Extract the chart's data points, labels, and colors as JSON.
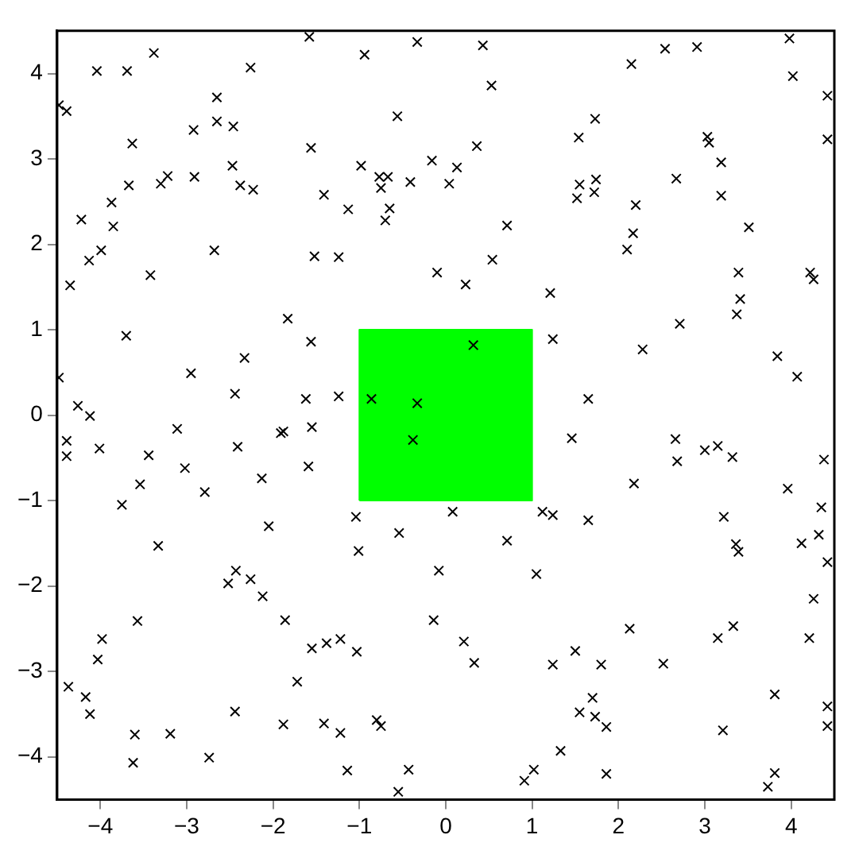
{
  "chart_data": {
    "type": "scatter",
    "grid": false,
    "legend": false,
    "xlim": [
      -4.5,
      4.5
    ],
    "xticks": [
      -4,
      -3,
      -2,
      -1,
      0,
      1,
      2,
      3,
      4
    ],
    "ylim": [
      -4.5,
      4.5
    ],
    "yticks": [
      -4,
      -3,
      -2,
      -1,
      0,
      1,
      2,
      3,
      4
    ],
    "series": [
      {
        "type": "area",
        "color": "#00ff00",
        "x": [
          -1,
          -1,
          1,
          1,
          -1
        ],
        "values": [
          -1,
          1,
          1,
          -1,
          -1
        ]
      },
      {
        "marker": "cross",
        "color": "#000000",
        "x": [
          -4.48,
          -4.48,
          -4.39,
          -4.04,
          -3.69,
          -3.38,
          -3.63,
          -3.67,
          -3.87,
          -3.85,
          -4.22,
          -4.13,
          -3.99,
          -4.35,
          -3.7,
          -3.42,
          -3.3,
          -3.22,
          -2.92,
          -2.91,
          -2.65,
          -2.65,
          -2.46,
          -2.47,
          -2.38,
          -2.23,
          -2.26,
          -2.68,
          -2.95,
          -2.33,
          -2.44,
          -1.83,
          -1.56,
          -1.62,
          -1.24,
          -1.58,
          -1.56,
          -1.52,
          -1.24,
          -1.41,
          -1.13,
          -0.98,
          -0.94,
          -0.56,
          -0.77,
          -0.67,
          -0.75,
          -0.65,
          -0.7,
          -0.41,
          -0.33,
          -0.86,
          -0.33,
          -4.26,
          -4.12,
          0.43,
          0.53,
          0.36,
          -0.16,
          0.13,
          0.04,
          0.71,
          0.54,
          -0.1,
          0.23,
          1.21,
          0.32,
          1.24,
          1.65,
          2.28,
          2.71,
          2.15,
          2.54,
          2.91,
          3.98,
          4.02,
          4.42,
          1.73,
          1.54,
          3.03,
          3.05,
          4.42,
          3.19,
          2.67,
          1.74,
          1.55,
          1.72,
          1.52,
          2.2,
          3.19,
          2.17,
          2.1,
          3.51,
          3.39,
          3.41,
          3.37,
          4.22,
          4.26,
          3.84,
          4.07,
          1.46,
          2.66,
          2.68,
          3.0,
          3.15,
          3.32,
          4.38,
          2.18,
          3.96,
          4.35,
          4.32,
          4.12,
          0.08,
          1.12,
          1.24,
          1.65,
          3.22,
          0.71,
          3.36,
          3.39,
          4.42,
          -0.08,
          1.05,
          4.26,
          -0.14,
          2.13,
          3.33,
          3.15,
          4.21,
          0.21,
          0.33,
          1.5,
          1.24,
          1.8,
          2.52,
          3.81,
          1.7,
          1.55,
          1.73,
          1.86,
          3.21,
          4.42,
          4.42,
          1.33,
          1.02,
          0.91,
          1.86,
          3.81,
          3.73,
          -4.39,
          -4.39,
          -4.01,
          -3.11,
          -3.44,
          -3.54,
          -3.02,
          -3.75,
          -2.79,
          -2.41,
          -3.33,
          -1.91,
          -1.88,
          -1.55,
          -2.13,
          -1.59,
          -0.38,
          -2.05,
          -1.04,
          -1.01,
          -0.54,
          -2.52,
          -2.43,
          -2.26,
          -2.12,
          -1.86,
          -3.57,
          -3.98,
          -4.03,
          -1.55,
          -1.38,
          -1.22,
          -1.03,
          -1.72,
          -4.37,
          -4.17,
          -4.12,
          -2.44,
          -1.88,
          -1.41,
          -1.22,
          -0.8,
          -0.75,
          -3.6,
          -3.19,
          -3.62,
          -2.74,
          -1.14,
          -0.43,
          -0.55
        ],
        "values": [
          0.44,
          3.63,
          3.56,
          4.03,
          4.03,
          4.24,
          3.18,
          2.69,
          2.49,
          2.21,
          2.29,
          1.81,
          1.93,
          1.52,
          0.93,
          1.64,
          2.71,
          2.8,
          3.34,
          2.79,
          3.72,
          3.44,
          3.38,
          2.92,
          2.69,
          2.64,
          4.07,
          1.93,
          0.49,
          0.67,
          0.25,
          1.13,
          0.86,
          0.19,
          0.22,
          4.43,
          3.13,
          1.86,
          1.85,
          2.58,
          2.41,
          2.92,
          4.22,
          3.5,
          2.79,
          2.79,
          2.66,
          2.42,
          2.28,
          2.73,
          4.37,
          0.19,
          0.14,
          0.11,
          -0.01,
          4.33,
          3.86,
          3.15,
          2.98,
          2.9,
          2.71,
          2.22,
          1.82,
          1.67,
          1.53,
          1.43,
          0.82,
          0.89,
          0.19,
          0.77,
          1.07,
          4.11,
          4.29,
          4.31,
          4.41,
          3.97,
          3.74,
          3.47,
          3.25,
          3.26,
          3.19,
          3.23,
          2.96,
          2.77,
          2.76,
          2.7,
          2.61,
          2.54,
          2.46,
          2.57,
          2.13,
          1.94,
          2.2,
          1.67,
          1.36,
          1.18,
          1.67,
          1.59,
          0.69,
          0.45,
          -0.27,
          -0.28,
          -0.54,
          -0.41,
          -0.36,
          -0.49,
          -0.52,
          -0.8,
          -0.86,
          -1.08,
          -1.4,
          -1.5,
          -1.13,
          -1.13,
          -1.17,
          -1.23,
          -1.19,
          -1.47,
          -1.51,
          -1.6,
          -1.72,
          -1.82,
          -1.86,
          -2.15,
          -2.4,
          -2.5,
          -2.47,
          -2.61,
          -2.61,
          -2.65,
          -2.9,
          -2.76,
          -2.92,
          -2.92,
          -2.91,
          -3.27,
          -3.31,
          -3.48,
          -3.53,
          -3.65,
          -3.69,
          -3.41,
          -3.64,
          -3.93,
          -4.15,
          -4.28,
          -4.2,
          -4.19,
          -4.35,
          -0.3,
          -0.48,
          -0.39,
          -0.16,
          -0.47,
          -0.81,
          -0.62,
          -1.05,
          -0.9,
          -0.37,
          -1.53,
          -0.21,
          -0.19,
          -0.14,
          -0.74,
          -0.6,
          -0.29,
          -1.3,
          -1.19,
          -1.59,
          -1.38,
          -1.97,
          -1.82,
          -1.92,
          -2.12,
          -2.4,
          -2.41,
          -2.62,
          -2.86,
          -2.73,
          -2.67,
          -2.62,
          -2.77,
          -3.12,
          -3.18,
          -3.3,
          -3.5,
          -3.47,
          -3.62,
          -3.61,
          -3.72,
          -3.57,
          -3.64,
          -3.74,
          -3.73,
          -4.07,
          -4.01,
          -4.16,
          -4.15,
          -4.41
        ]
      }
    ]
  }
}
